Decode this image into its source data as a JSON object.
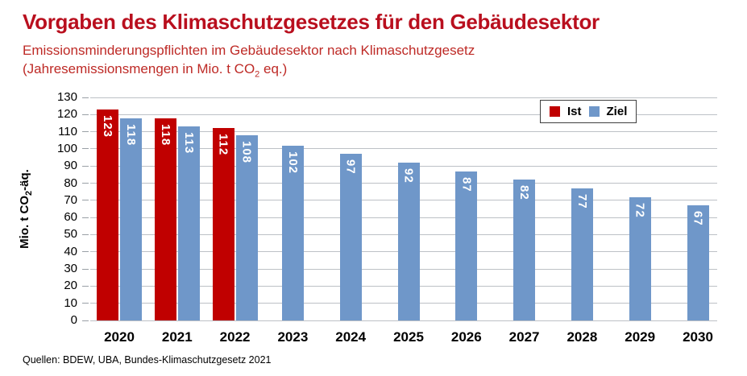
{
  "header": {
    "title": "Vorgaben des Klimaschutzgesetzes für den Gebäudesektor",
    "subtitle": "Emissionsminderungspflichten im Gebäudesektor nach Klimaschutzgesetz",
    "subtitle_note": {
      "pre": "(Jahresemissionsmengen in Mio. t CO",
      "sub": "2",
      "post": " eq.)"
    }
  },
  "chart_data": {
    "type": "bar",
    "title": "Vorgaben des Klimaschutzgesetzes für den Gebäudesektor",
    "subtitle": "Emissionsminderungspflichten im Gebäudesektor nach Klimaschutzgesetz (Jahresemissionsmengen in Mio. t CO₂ eq.)",
    "categories": [
      "2020",
      "2021",
      "2022",
      "2023",
      "2024",
      "2025",
      "2026",
      "2027",
      "2028",
      "2029",
      "2030"
    ],
    "series": [
      {
        "name": "Ist",
        "color": "#C00000",
        "values": [
          123,
          118,
          112,
          null,
          null,
          null,
          null,
          null,
          null,
          null,
          null
        ]
      },
      {
        "name": "Ziel",
        "color": "#6F97C9",
        "values": [
          118,
          113,
          108,
          102,
          97,
          92,
          87,
          82,
          77,
          72,
          67
        ]
      }
    ],
    "ylabel": {
      "pre": "Mio. t CO",
      "sub": "2",
      "post": "-äq."
    },
    "xlabel": "",
    "ylim": [
      0,
      130
    ],
    "ytick_step": 10,
    "grid": true,
    "legend_position": "top-right-inside",
    "value_labels": "rotated-90-inside-top-white"
  },
  "colors": {
    "ist_red": "#C00000",
    "ziel_blue": "#6F97C9",
    "heading_red": "#B90F1E",
    "gridline_gray": "#BDC1C6"
  },
  "footer": {
    "source": "Quellen: BDEW, UBA, Bundes-Klimaschutzgesetz 2021"
  }
}
